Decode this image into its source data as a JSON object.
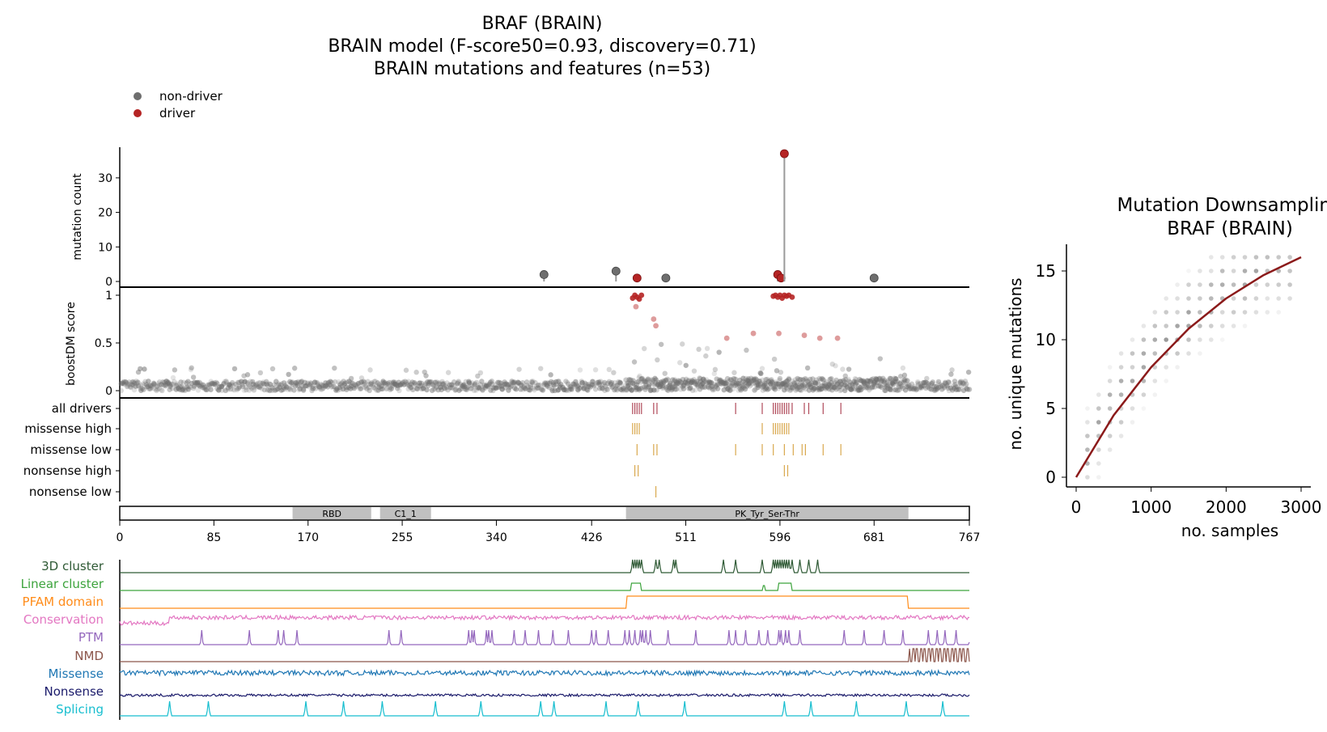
{
  "header": {
    "title_line1": "BRAF (BRAIN)",
    "title_line2": "BRAIN model (F-score50=0.93, discovery=0.71)",
    "title_line3": "BRAIN mutations and features (n=53)"
  },
  "legend": {
    "items": [
      {
        "label": "non-driver",
        "color": "#6e6e6e"
      },
      {
        "label": "driver",
        "color": "#b52424"
      }
    ]
  },
  "colors": {
    "driver": "#b52424",
    "nondriver": "#6e6e6e",
    "missense_track": "#d9a84e",
    "all_drivers_track": "#b04a5a",
    "domain_fill": "#c0c0c0",
    "curve": "#8b1a1a"
  },
  "chart_data": [
    {
      "type": "scatter",
      "name_key": "mutation-count-lollipop",
      "ylabel": "mutation count",
      "xlim": [
        0,
        767
      ],
      "ylim": [
        0,
        37
      ],
      "yticks": [
        0,
        10,
        20,
        30
      ],
      "points": [
        {
          "x": 383,
          "y": 2,
          "driver": false
        },
        {
          "x": 448,
          "y": 3,
          "driver": false
        },
        {
          "x": 467,
          "y": 1,
          "driver": true
        },
        {
          "x": 493,
          "y": 1,
          "driver": false
        },
        {
          "x": 594,
          "y": 2,
          "driver": true
        },
        {
          "x": 597,
          "y": 1,
          "driver": true
        },
        {
          "x": 600,
          "y": 37,
          "driver": true
        },
        {
          "x": 681,
          "y": 1,
          "driver": false
        }
      ]
    },
    {
      "type": "scatter",
      "name_key": "boostdm-score",
      "ylabel": "boostDM score",
      "xlim": [
        0,
        767
      ],
      "ylim": [
        0,
        1
      ],
      "yticks": [
        0,
        0.5,
        1
      ],
      "driver_points": [
        {
          "x": 463,
          "y": 0.97
        },
        {
          "x": 465,
          "y": 1.0
        },
        {
          "x": 467,
          "y": 0.98
        },
        {
          "x": 469,
          "y": 0.96
        },
        {
          "x": 471,
          "y": 1.0
        },
        {
          "x": 466,
          "y": 0.88
        },
        {
          "x": 482,
          "y": 0.75
        },
        {
          "x": 484,
          "y": 0.68
        },
        {
          "x": 548,
          "y": 0.55
        },
        {
          "x": 572,
          "y": 0.6
        },
        {
          "x": 590,
          "y": 0.99
        },
        {
          "x": 592,
          "y": 1.0
        },
        {
          "x": 594,
          "y": 0.98
        },
        {
          "x": 596,
          "y": 1.0
        },
        {
          "x": 598,
          "y": 0.97
        },
        {
          "x": 600,
          "y": 1.0
        },
        {
          "x": 602,
          "y": 0.99
        },
        {
          "x": 604,
          "y": 1.0
        },
        {
          "x": 607,
          "y": 0.98
        },
        {
          "x": 595,
          "y": 0.6
        },
        {
          "x": 618,
          "y": 0.58
        },
        {
          "x": 632,
          "y": 0.55
        },
        {
          "x": 648,
          "y": 0.55
        }
      ]
    },
    {
      "type": "table",
      "name_key": "feature-tracks",
      "tracks": [
        {
          "label": "all drivers",
          "positions": [
            463,
            465,
            467,
            469,
            471,
            482,
            485,
            556,
            580,
            590,
            592,
            594,
            596,
            598,
            600,
            602,
            604,
            607,
            618,
            622,
            635,
            651
          ]
        },
        {
          "label": "missense high",
          "positions": [
            463,
            465,
            467,
            469,
            580,
            590,
            592,
            594,
            596,
            598,
            600,
            602,
            604
          ]
        },
        {
          "label": "missense low",
          "positions": [
            467,
            482,
            485,
            556,
            580,
            590,
            600,
            608,
            616,
            619,
            635,
            651
          ]
        },
        {
          "label": "nonsense high",
          "positions": [
            465,
            468,
            600,
            603
          ]
        },
        {
          "label": "nonsense low",
          "positions": [
            484
          ]
        }
      ]
    },
    {
      "type": "bar",
      "name_key": "protein-domains",
      "xlim": [
        0,
        767
      ],
      "xticks": [
        0,
        85,
        170,
        255,
        340,
        426,
        511,
        596,
        681,
        767
      ],
      "domains": [
        {
          "label": "RBD",
          "start": 156,
          "end": 227
        },
        {
          "label": "C1_1",
          "start": 235,
          "end": 281
        },
        {
          "label": "PK_Tyr_Ser-Thr",
          "start": 457,
          "end": 712
        }
      ]
    },
    {
      "type": "line",
      "name_key": "feature-signals",
      "tracks": [
        {
          "label": "3D cluster",
          "color": "#2f5a35"
        },
        {
          "label": "Linear cluster",
          "color": "#3ca33c"
        },
        {
          "label": "PFAM domain",
          "color": "#ff8c1a"
        },
        {
          "label": "Conservation",
          "color": "#e377c2"
        },
        {
          "label": "PTM",
          "color": "#9467bd"
        },
        {
          "label": "NMD",
          "color": "#8c564b"
        },
        {
          "label": "Missense",
          "color": "#1f77b4"
        },
        {
          "label": "Nonsense",
          "color": "#1b1b6b"
        },
        {
          "label": "Splicing",
          "color": "#17becf"
        }
      ]
    },
    {
      "type": "scatter",
      "name_key": "mutation-downsampling",
      "title_line1": "Mutation Downsampling",
      "title_line2": "BRAF (BRAIN)",
      "xlabel": "no. samples",
      "ylabel": "no. unique mutations",
      "xlim": [
        0,
        3000
      ],
      "ylim": [
        0,
        16
      ],
      "xticks": [
        0,
        1000,
        2000,
        3000
      ],
      "yticks": [
        0,
        5,
        10,
        15
      ],
      "curve": {
        "x": [
          0,
          500,
          1000,
          1500,
          2000,
          2500,
          3000
        ],
        "y": [
          0,
          4.5,
          8.0,
          10.8,
          13.0,
          14.7,
          16.0
        ]
      }
    }
  ]
}
